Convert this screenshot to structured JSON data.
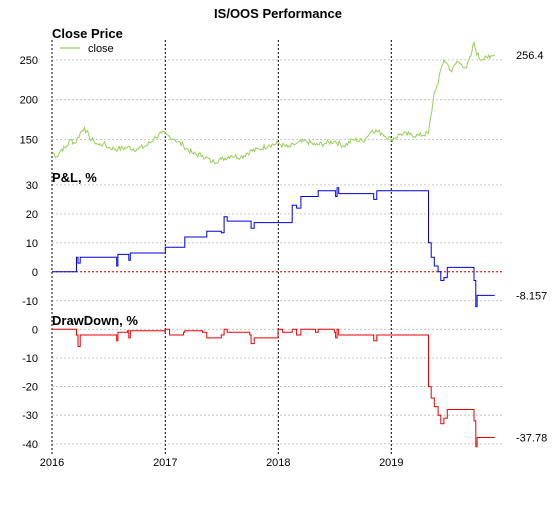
{
  "chart_data": {
    "title": "IS/OOS Performance",
    "type": "line",
    "x_axis": {
      "type": "date",
      "range": [
        "2016-01-01",
        "2019-12-31"
      ],
      "tick_labels": [
        "2016",
        "2017",
        "2018",
        "2019"
      ],
      "vertical_lines": "dotted at year boundaries"
    },
    "panels": [
      {
        "name": "Close Price",
        "type": "line",
        "color": "#9acd5a",
        "legend": {
          "entries": [
            "close"
          ],
          "placement": "top-left"
        },
        "y_ticks": [
          150,
          200,
          250
        ],
        "ylim": [
          118,
          275
        ],
        "grid": true,
        "last_value_label": "256.4",
        "series": [
          {
            "name": "close",
            "points": [
              [
                "2016-01-01",
                135
              ],
              [
                "2016-01-15",
                128
              ],
              [
                "2016-02-01",
                138
              ],
              [
                "2016-02-15",
                140
              ],
              [
                "2016-03-01",
                150
              ],
              [
                "2016-03-15",
                145
              ],
              [
                "2016-04-01",
                158
              ],
              [
                "2016-04-15",
                165
              ],
              [
                "2016-05-01",
                152
              ],
              [
                "2016-05-15",
                148
              ],
              [
                "2016-06-01",
                143
              ],
              [
                "2016-06-15",
                145
              ],
              [
                "2016-07-01",
                140
              ],
              [
                "2016-08-01",
                138
              ],
              [
                "2016-09-01",
                140
              ],
              [
                "2016-10-01",
                138
              ],
              [
                "2016-11-01",
                142
              ],
              [
                "2016-12-01",
                153
              ],
              [
                "2016-12-20",
                158
              ],
              [
                "2017-01-15",
                154
              ],
              [
                "2017-02-01",
                150
              ],
              [
                "2017-03-01",
                142
              ],
              [
                "2017-04-01",
                132
              ],
              [
                "2017-05-01",
                130
              ],
              [
                "2017-06-01",
                122
              ],
              [
                "2017-07-01",
                125
              ],
              [
                "2017-08-01",
                130
              ],
              [
                "2017-09-01",
                128
              ],
              [
                "2017-10-01",
                135
              ],
              [
                "2017-11-01",
                138
              ],
              [
                "2017-12-01",
                143
              ],
              [
                "2018-01-01",
                145
              ],
              [
                "2018-02-01",
                140
              ],
              [
                "2018-03-01",
                145
              ],
              [
                "2018-04-01",
                148
              ],
              [
                "2018-05-01",
                143
              ],
              [
                "2018-06-01",
                145
              ],
              [
                "2018-07-01",
                148
              ],
              [
                "2018-08-01",
                142
              ],
              [
                "2018-09-01",
                150
              ],
              [
                "2018-10-01",
                148
              ],
              [
                "2018-11-01",
                162
              ],
              [
                "2018-12-01",
                158
              ],
              [
                "2019-01-01",
                150
              ],
              [
                "2019-02-01",
                157
              ],
              [
                "2019-03-01",
                156
              ],
              [
                "2019-04-01",
                155
              ],
              [
                "2019-05-01",
                158
              ],
              [
                "2019-05-15",
                195
              ],
              [
                "2019-05-20",
                210
              ],
              [
                "2019-06-01",
                220
              ],
              [
                "2019-06-10",
                238
              ],
              [
                "2019-06-20",
                250
              ],
              [
                "2019-07-01",
                245
              ],
              [
                "2019-07-15",
                235
              ],
              [
                "2019-08-01",
                248
              ],
              [
                "2019-08-15",
                245
              ],
              [
                "2019-09-01",
                240
              ],
              [
                "2019-09-15",
                255
              ],
              [
                "2019-09-25",
                272
              ],
              [
                "2019-10-01",
                262
              ],
              [
                "2019-10-15",
                250
              ],
              [
                "2019-11-01",
                255
              ],
              [
                "2019-11-15",
                252
              ],
              [
                "2019-12-01",
                256.4
              ]
            ]
          }
        ]
      },
      {
        "name": "P&L, %",
        "type": "step",
        "color": "#0000dd",
        "y_ticks": [
          -10,
          0,
          10,
          20,
          30
        ],
        "ylim": [
          -12.5,
          31
        ],
        "grid": true,
        "reference_line": {
          "value": 0,
          "color": "#dd0000",
          "style": "dotted"
        },
        "last_value_label": "-8.157",
        "series": [
          {
            "name": "P&L",
            "points": [
              [
                "2016-01-01",
                0
              ],
              [
                "2016-03-15",
                0
              ],
              [
                "2016-03-20",
                5
              ],
              [
                "2016-03-25",
                3
              ],
              [
                "2016-04-01",
                5
              ],
              [
                "2016-07-25",
                5
              ],
              [
                "2016-07-28",
                2
              ],
              [
                "2016-08-01",
                6
              ],
              [
                "2016-09-01",
                6
              ],
              [
                "2016-09-05",
                4
              ],
              [
                "2016-09-10",
                6.5
              ],
              [
                "2016-12-31",
                6.5
              ],
              [
                "2017-01-01",
                8.5
              ],
              [
                "2017-03-01",
                8.5
              ],
              [
                "2017-03-05",
                12
              ],
              [
                "2017-05-01",
                12
              ],
              [
                "2017-05-15",
                14
              ],
              [
                "2017-07-01",
                13.5
              ],
              [
                "2017-07-10",
                19
              ],
              [
                "2017-07-20",
                17.5
              ],
              [
                "2017-10-01",
                17.5
              ],
              [
                "2017-10-05",
                15
              ],
              [
                "2017-10-15",
                17
              ],
              [
                "2017-12-31",
                17
              ],
              [
                "2018-01-15",
                17
              ],
              [
                "2018-02-15",
                23
              ],
              [
                "2018-03-01",
                22
              ],
              [
                "2018-03-15",
                26
              ],
              [
                "2018-05-01",
                26
              ],
              [
                "2018-05-10",
                28
              ],
              [
                "2018-07-01",
                28
              ],
              [
                "2018-07-05",
                26
              ],
              [
                "2018-07-10",
                29
              ],
              [
                "2018-07-15",
                27
              ],
              [
                "2018-11-01",
                27
              ],
              [
                "2018-11-05",
                25
              ],
              [
                "2018-11-15",
                28
              ],
              [
                "2019-04-01",
                28
              ],
              [
                "2019-04-20",
                28
              ],
              [
                "2019-05-01",
                10
              ],
              [
                "2019-05-10",
                5
              ],
              [
                "2019-05-20",
                2
              ],
              [
                "2019-06-01",
                0
              ],
              [
                "2019-06-10",
                -3
              ],
              [
                "2019-06-20",
                -2
              ],
              [
                "2019-07-01",
                1.5
              ],
              [
                "2019-09-15",
                1.5
              ],
              [
                "2019-09-25",
                -3
              ],
              [
                "2019-10-01",
                -12
              ],
              [
                "2019-10-05",
                -8.157
              ],
              [
                "2019-12-01",
                -8.157
              ]
            ]
          }
        ]
      },
      {
        "name": "DrawDown, %",
        "type": "step",
        "color": "#ee0000",
        "y_ticks": [
          -40,
          -30,
          -20,
          -10,
          0
        ],
        "ylim": [
          -42.5,
          1.5
        ],
        "grid": true,
        "last_value_label": "-37.78",
        "series": [
          {
            "name": "DrawDown",
            "points": [
              [
                "2016-01-01",
                0
              ],
              [
                "2016-03-15",
                0
              ],
              [
                "2016-03-20",
                -2
              ],
              [
                "2016-03-25",
                -6
              ],
              [
                "2016-04-01",
                -2
              ],
              [
                "2016-07-25",
                -2
              ],
              [
                "2016-07-28",
                -4
              ],
              [
                "2016-08-01",
                -1
              ],
              [
                "2016-09-01",
                -0.5
              ],
              [
                "2016-09-05",
                -3
              ],
              [
                "2016-09-10",
                -0.5
              ],
              [
                "2016-12-31",
                -1
              ],
              [
                "2017-01-01",
                0
              ],
              [
                "2017-01-15",
                -2
              ],
              [
                "2017-03-01",
                -1
              ],
              [
                "2017-03-05",
                -0.5
              ],
              [
                "2017-05-01",
                -1
              ],
              [
                "2017-05-15",
                -3
              ],
              [
                "2017-07-01",
                -2
              ],
              [
                "2017-07-10",
                0
              ],
              [
                "2017-07-20",
                -1
              ],
              [
                "2017-10-01",
                -2
              ],
              [
                "2017-10-05",
                -5
              ],
              [
                "2017-10-15",
                -3
              ],
              [
                "2017-12-31",
                0
              ],
              [
                "2018-01-15",
                -1
              ],
              [
                "2018-02-15",
                0
              ],
              [
                "2018-03-01",
                -2
              ],
              [
                "2018-03-15",
                0
              ],
              [
                "2018-05-01",
                -1
              ],
              [
                "2018-05-10",
                0
              ],
              [
                "2018-07-01",
                -1
              ],
              [
                "2018-07-05",
                -3
              ],
              [
                "2018-07-10",
                0
              ],
              [
                "2018-07-15",
                -2
              ],
              [
                "2018-11-01",
                -2
              ],
              [
                "2018-11-05",
                -4
              ],
              [
                "2018-11-15",
                -2
              ],
              [
                "2019-04-01",
                -2
              ],
              [
                "2019-04-20",
                -2
              ],
              [
                "2019-05-01",
                -20
              ],
              [
                "2019-05-10",
                -24
              ],
              [
                "2019-05-20",
                -27
              ],
              [
                "2019-06-01",
                -30
              ],
              [
                "2019-06-10",
                -33
              ],
              [
                "2019-06-20",
                -31
              ],
              [
                "2019-07-01",
                -28
              ],
              [
                "2019-09-15",
                -28
              ],
              [
                "2019-09-25",
                -32
              ],
              [
                "2019-10-01",
                -41
              ],
              [
                "2019-10-05",
                -37.78
              ],
              [
                "2019-12-01",
                -37.78
              ]
            ]
          }
        ]
      }
    ]
  }
}
